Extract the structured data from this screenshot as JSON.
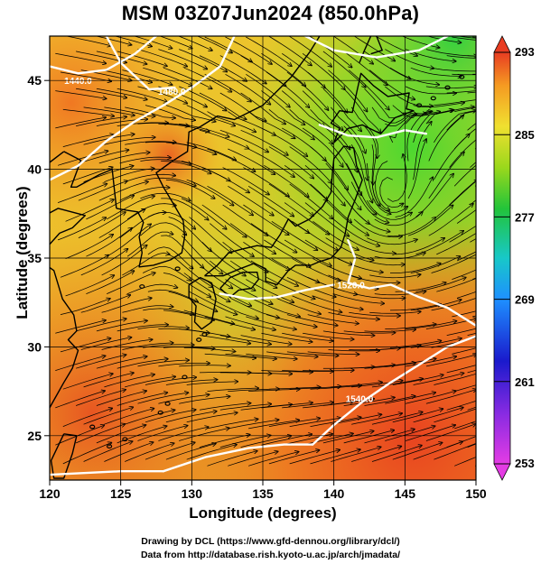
{
  "title": "MSM 03Z07Jun2024 (850.0hPa)",
  "xlabel": "Longitude (degrees)",
  "ylabel": "Latitude  (degrees)",
  "credit_line1": "Drawing by DCL (https://www.gfd-dennou.org/library/dcl/)",
  "credit_line2": "Data from http://database.rish.kyoto-u.ac.jp/arch/jmadata/",
  "map": {
    "lon_range": [
      120,
      150
    ],
    "lat_range": [
      22.5,
      47.5
    ],
    "lon_ticks": [
      120,
      125,
      130,
      135,
      140,
      145,
      150
    ],
    "lon_tick_labels": [
      "120",
      "125",
      "130",
      "135",
      "140",
      "145",
      "150"
    ],
    "lat_ticks": [
      25,
      30,
      35,
      40,
      45
    ],
    "lat_tick_labels": [
      "25",
      "30",
      "35",
      "40",
      "45"
    ],
    "grid": true,
    "contour_labels": [
      {
        "text": "1440.0",
        "lon": 122.0,
        "lat": 44.8
      },
      {
        "text": "1480.0",
        "lon": 128.6,
        "lat": 44.2
      },
      {
        "text": "1520.0",
        "lon": 141.2,
        "lat": 33.3
      },
      {
        "text": "1540.0",
        "lon": 141.8,
        "lat": 26.9
      }
    ]
  },
  "colorbar": {
    "min": 253,
    "max": 293,
    "ticks": [
      293,
      285,
      277,
      269,
      261,
      253
    ],
    "tick_labels": [
      "293",
      "285",
      "277",
      "269",
      "261",
      "253"
    ]
  }
}
